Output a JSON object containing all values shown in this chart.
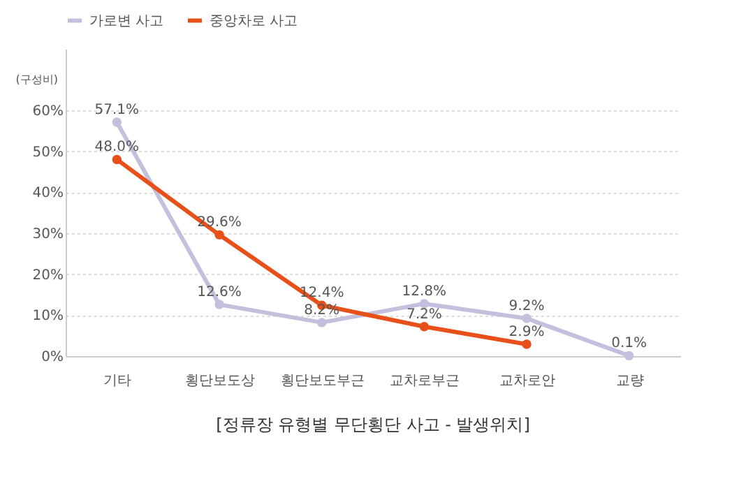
{
  "chart_data": {
    "type": "line",
    "title": "[정류장 유형별 무단횡단 사고 - 발생위치]",
    "ylabel": "(구성비)",
    "categories": [
      "기타",
      "횡단보도상",
      "횡단보도부근",
      "교차로부근",
      "교차로안",
      "교량"
    ],
    "series": [
      {
        "name": "가로변 사고",
        "color": "#c3c0dd",
        "values": [
          57.1,
          12.6,
          8.2,
          12.8,
          9.2,
          0.1
        ],
        "value_labels": [
          "57.1%",
          "12.6%",
          "8.2%",
          "12.8%",
          "9.2%",
          "0.1%"
        ]
      },
      {
        "name": "중앙차로 사고",
        "color": "#e8501a",
        "values": [
          48.0,
          29.6,
          12.4,
          7.2,
          2.9,
          null
        ],
        "value_labels": [
          "48.0%",
          "29.6%",
          "12.4%",
          "7.2%",
          "2.9%",
          null
        ]
      }
    ],
    "ylim": [
      0,
      75
    ],
    "yticks": [
      {
        "value": 0,
        "label": "0%"
      },
      {
        "value": 10,
        "label": "10%"
      },
      {
        "value": 20,
        "label": "20%"
      },
      {
        "value": 30,
        "label": "30%"
      },
      {
        "value": 40,
        "label": "40%"
      },
      {
        "value": 50,
        "label": "50%"
      },
      {
        "value": 60,
        "label": "60%"
      }
    ],
    "grid": "y",
    "legend": "top left",
    "marker": "circle",
    "line_style": "solid"
  }
}
